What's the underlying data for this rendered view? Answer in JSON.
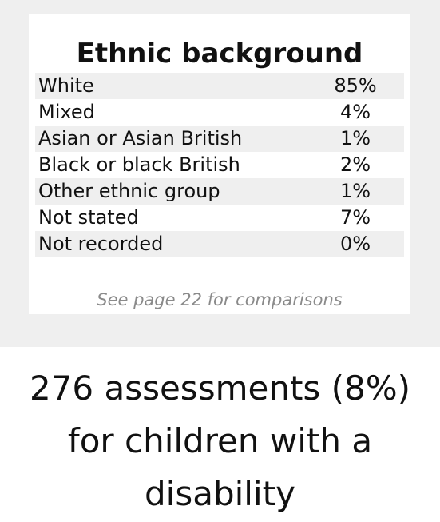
{
  "ethnic_background": {
    "title": "Ethnic background",
    "rows": [
      {
        "label": "White",
        "value": "85%"
      },
      {
        "label": "Mixed",
        "value": "4%"
      },
      {
        "label": "Asian or Asian British",
        "value": "1%"
      },
      {
        "label": "Black or black British",
        "value": "2%"
      },
      {
        "label": "Other ethnic group",
        "value": "1%"
      },
      {
        "label": "Not stated",
        "value": "7%"
      },
      {
        "label": "Not recorded",
        "value": "0%"
      }
    ],
    "note": "See page 22 for comparisons"
  },
  "disability": {
    "lines": [
      "276 assessments (8%)",
      "for children with a",
      "disability"
    ]
  }
}
